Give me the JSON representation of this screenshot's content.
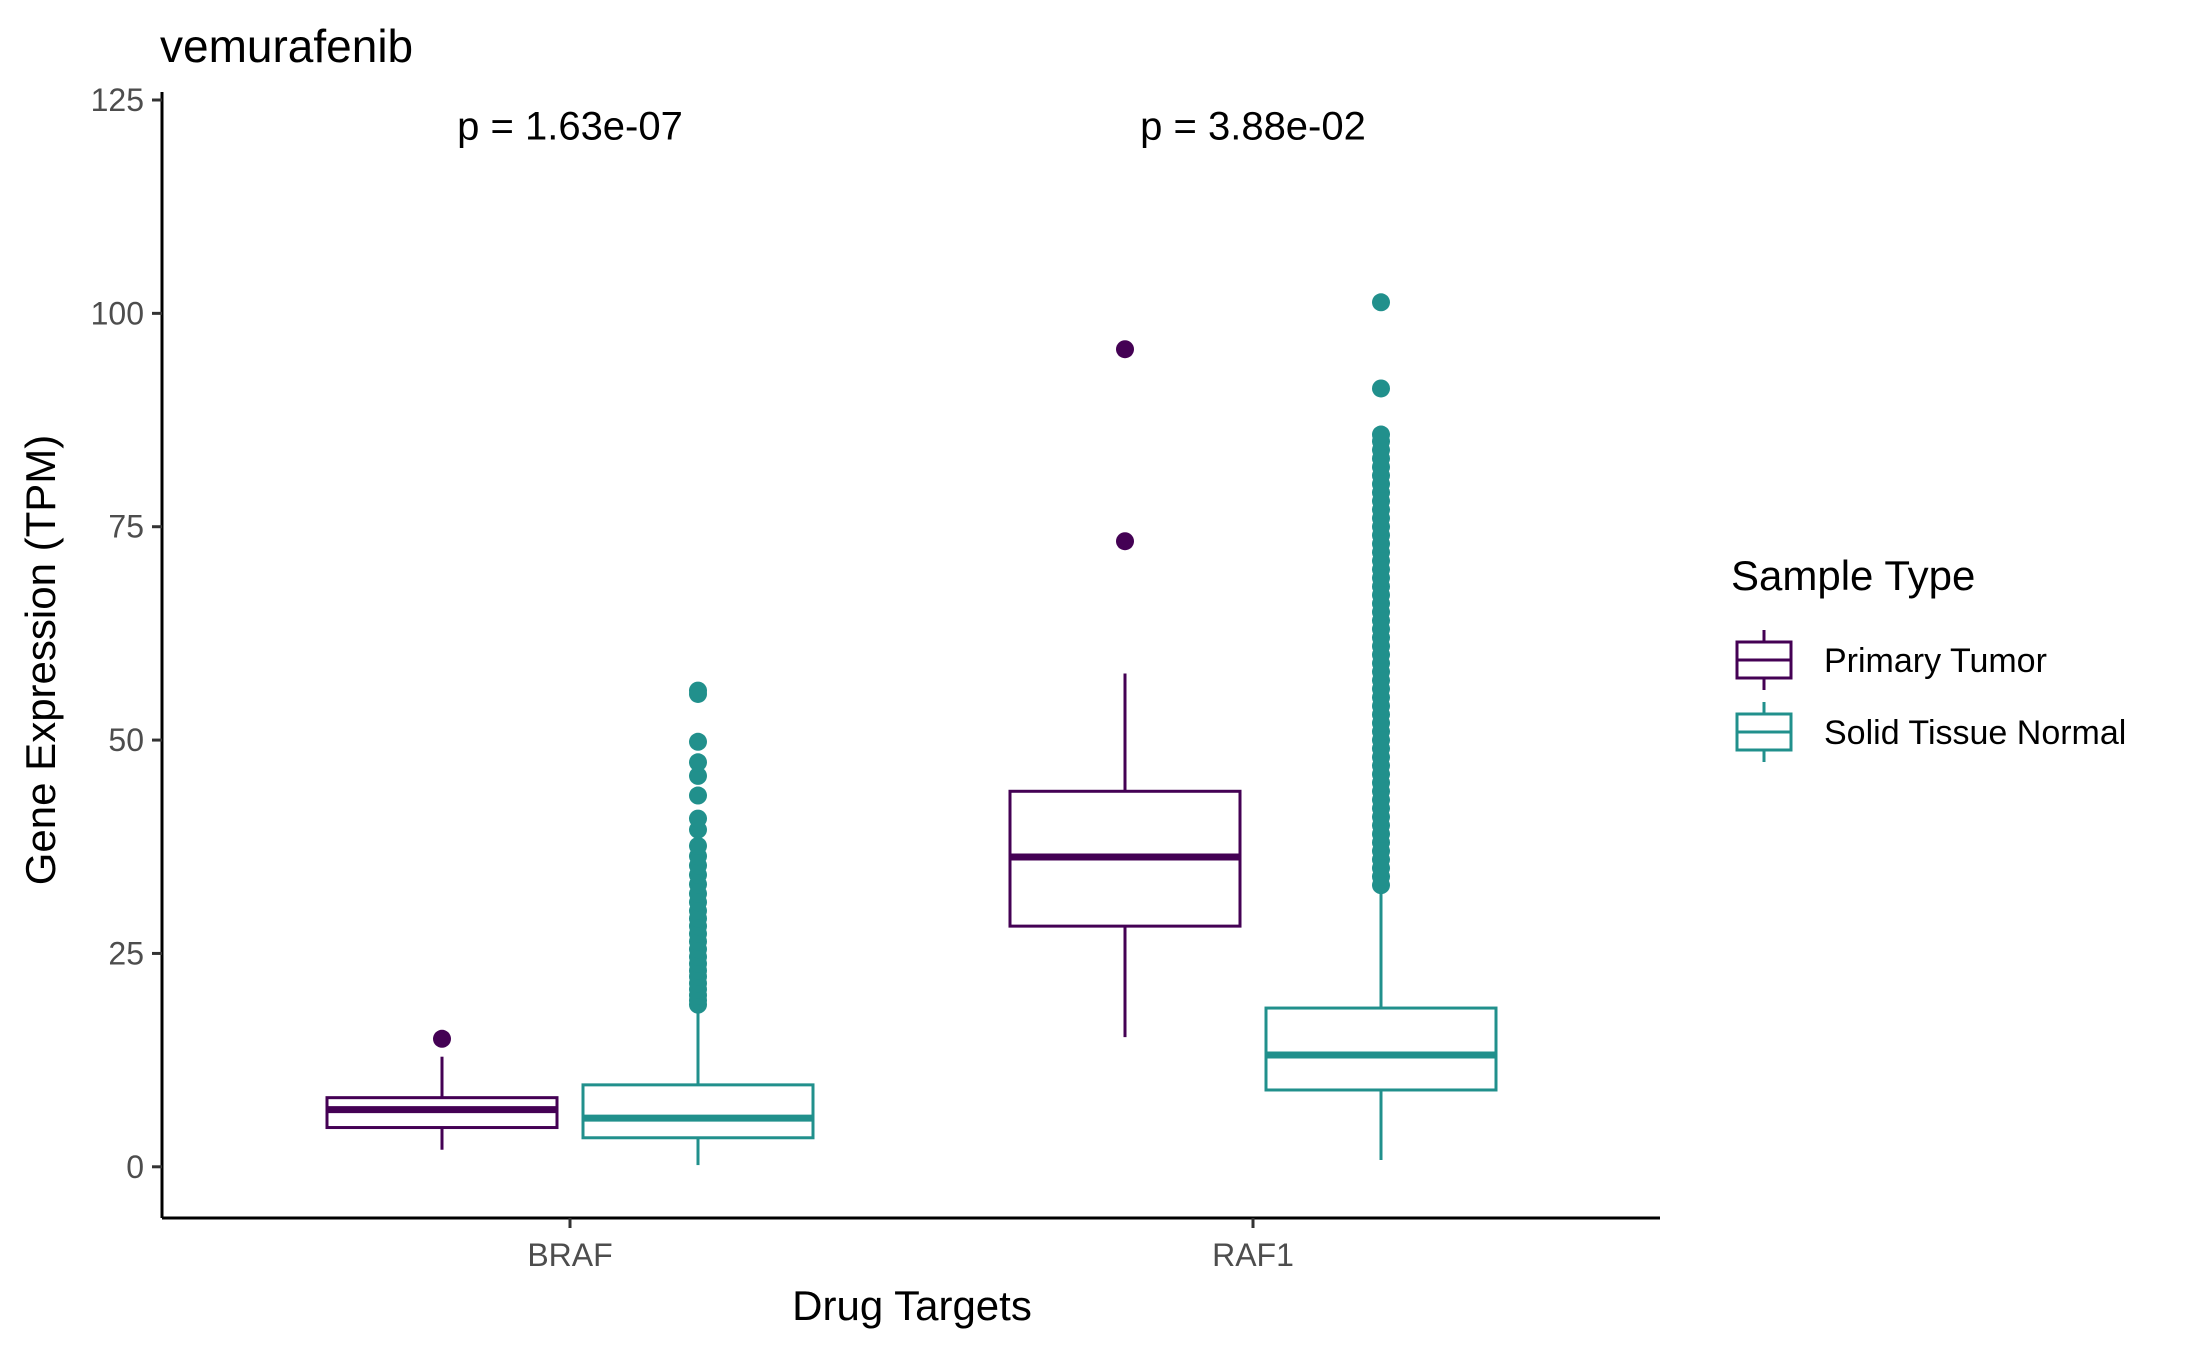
{
  "chart_data": {
    "type": "box",
    "title": "vemurafenib",
    "xlabel": "Drug Targets",
    "ylabel": "Gene Expression (TPM)",
    "categories": [
      "BRAF",
      "RAF1"
    ],
    "ylim": [
      -6,
      125
    ],
    "yticks": [
      0,
      25,
      50,
      75,
      100,
      125
    ],
    "grid": false,
    "legend": {
      "title": "Sample Type",
      "position": "right"
    },
    "annotations": [
      {
        "category": "BRAF",
        "text": "p = 1.63e-07",
        "y": 122
      },
      {
        "category": "RAF1",
        "text": "p = 3.88e-02",
        "y": 122
      }
    ],
    "series": [
      {
        "name": "Primary Tumor",
        "color": "#440154",
        "boxes": [
          {
            "category": "BRAF",
            "whisker_low": 2.0,
            "q1": 4.6,
            "median": 6.7,
            "q3": 8.1,
            "whisker_high": 12.9,
            "outliers": [
              15.0
            ]
          },
          {
            "category": "RAF1",
            "whisker_low": 15.2,
            "q1": 28.2,
            "median": 36.3,
            "q3": 44.0,
            "whisker_high": 57.8,
            "outliers": [
              73.3,
              95.8
            ]
          }
        ]
      },
      {
        "name": "Solid Tissue Normal",
        "color": "#21908C",
        "boxes": [
          {
            "category": "BRAF",
            "whisker_low": 0.2,
            "q1": 3.4,
            "median": 5.7,
            "q3": 9.6,
            "whisker_high": 18.4,
            "outliers": [
              19.0,
              19.5,
              20.1,
              20.8,
              21.5,
              22.3,
              23.0,
              23.8,
              24.6,
              25.5,
              26.4,
              27.3,
              28.2,
              29.1,
              30.0,
              31.0,
              32.0,
              33.1,
              34.2,
              35.3,
              36.4,
              37.6,
              39.5,
              40.8,
              43.5,
              45.8,
              47.4,
              49.8,
              55.4,
              55.8
            ]
          },
          {
            "category": "RAF1",
            "whisker_low": 0.8,
            "q1": 9.0,
            "median": 13.1,
            "q3": 18.6,
            "whisker_high": 32.5,
            "outliers": [
              33.0,
              34.0,
              35.0,
              36.0,
              37.0,
              38.0,
              39.0,
              40.0,
              41.0,
              42.0,
              43.0,
              44.0,
              45.0,
              46.0,
              47.0,
              48.0,
              49.0,
              50.0,
              51.0,
              52.0,
              53.0,
              54.0,
              55.0,
              56.0,
              57.0,
              58.0,
              59.0,
              60.0,
              61.0,
              62.0,
              63.0,
              64.0,
              65.0,
              66.0,
              67.0,
              68.0,
              69.0,
              70.0,
              71.0,
              72.0,
              73.0,
              74.0,
              75.0,
              76.0,
              77.0,
              78.0,
              79.0,
              80.0,
              81.0,
              82.0,
              83.0,
              84.0,
              85.0,
              85.8,
              91.2,
              101.3
            ]
          }
        ]
      }
    ]
  }
}
